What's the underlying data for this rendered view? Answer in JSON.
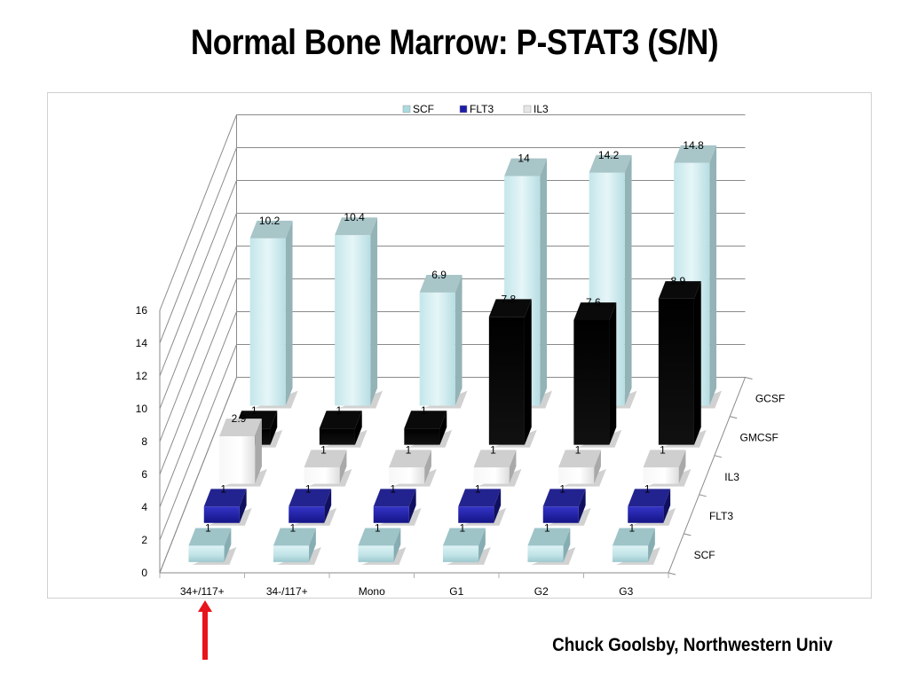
{
  "slide": {
    "title": "Normal Bone Marrow: P-STAT3 (S/N)",
    "credit": "Chuck Goolsby, Northwestern Univ"
  },
  "chart_data": {
    "type": "bar",
    "subtype": "3d-clustered-column",
    "title": "",
    "xlabel": "",
    "ylabel": "",
    "categories": [
      "34+/117+",
      "34-/117+",
      "Mono",
      "G1",
      "G2",
      "G3"
    ],
    "ylim": [
      0,
      16
    ],
    "yticks": [
      "0",
      "2",
      "4",
      "6",
      "8",
      "10",
      "12",
      "14",
      "16"
    ],
    "depth_labels": [
      "SCF",
      "FLT3",
      "IL3",
      "GMCSF",
      "GCSF"
    ],
    "legend": {
      "position": "top",
      "entries": [
        "SCF",
        "FLT3",
        "IL3"
      ]
    },
    "grid": true,
    "series": [
      {
        "name": "SCF",
        "color": "#a9dadf",
        "values": [
          1,
          1,
          1,
          1,
          1,
          1
        ],
        "labels": [
          "1",
          "1",
          "1",
          "1",
          "1",
          "1"
        ]
      },
      {
        "name": "FLT3",
        "color": "#1c1ca8",
        "values": [
          1,
          1,
          1,
          1,
          1,
          1
        ],
        "labels": [
          "1",
          "1",
          "1",
          "1",
          "1",
          "1"
        ]
      },
      {
        "name": "IL3",
        "color": "#e6e6e6",
        "values": [
          2.9,
          1,
          1,
          1,
          1,
          1
        ],
        "labels": [
          "2.9",
          "1",
          "1",
          "1",
          "1",
          "1"
        ]
      },
      {
        "name": "GMCSF",
        "color": "#050505",
        "values": [
          1,
          1,
          1,
          7.8,
          7.6,
          8.9
        ],
        "labels": [
          "1",
          "1",
          "1",
          "7.8",
          "7.6",
          "8.9"
        ]
      },
      {
        "name": "GCSF",
        "color": "#d4eef2",
        "values": [
          10.2,
          10.4,
          6.9,
          14,
          14.2,
          14.8
        ],
        "labels": [
          "10.2",
          "10.4",
          "6.9",
          "14",
          "14.2",
          "14.8"
        ]
      }
    ]
  }
}
